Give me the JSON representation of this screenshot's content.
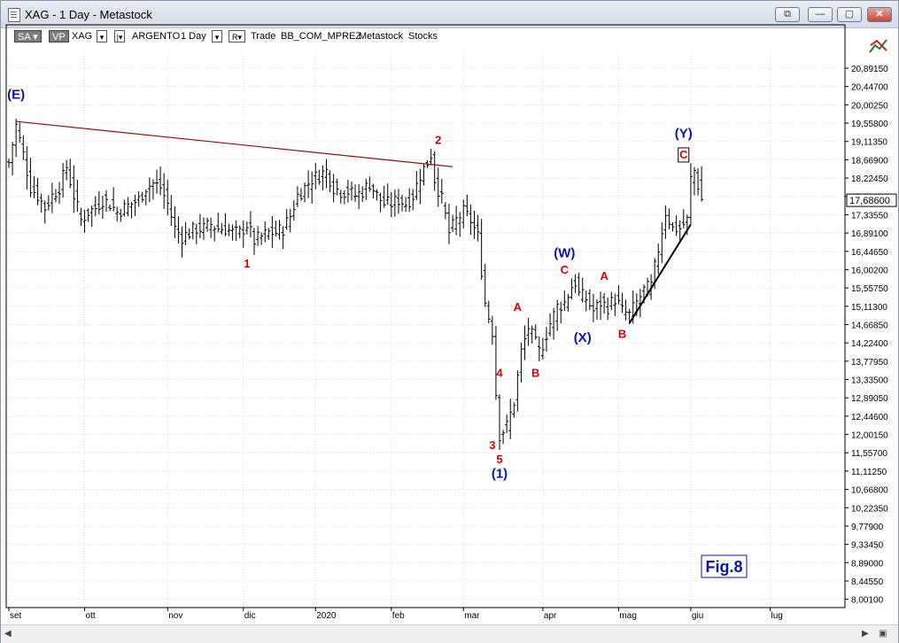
{
  "window": {
    "title": "XAG - 1 Day - Metastock",
    "buttons": {
      "restore_all": "⧉",
      "minimize": "—",
      "maximize": "▢",
      "close": "✕"
    }
  },
  "toolbar": {
    "sa": "SA",
    "vp": "VP",
    "symbol": "XAG",
    "name": "ARGENTO",
    "period": "1 Day",
    "r_label": "R",
    "items": [
      "Trade",
      "BB_COM_MPREZ",
      "Metastock",
      "Stocks"
    ]
  },
  "icons": {
    "chart_tool": "chart-tool-icon"
  },
  "colors": {
    "bars": "#000000",
    "wave_red": "#dd0000",
    "wave_blue": "#0a14b4",
    "trendline": "#9b1010",
    "grid": "#dcdcdc"
  },
  "chart_data": {
    "type": "ohlc",
    "title": "",
    "last_price": "17,68600",
    "ylim": [
      7.8,
      21.3
    ],
    "y_ticks": [
      "8,00100",
      "8,44550",
      "8,89000",
      "9,33450",
      "9,77900",
      "10,22350",
      "10,66800",
      "11,11250",
      "11,55700",
      "12,00150",
      "12,44600",
      "12,89050",
      "13,33500",
      "13,77950",
      "14,22400",
      "14,66850",
      "15,11300",
      "15,55750",
      "16,00200",
      "16,44650",
      "16,89100",
      "17,33550",
      "17,78000",
      "18,22450",
      "18,66900",
      "19,11350",
      "19,55800",
      "20,00250",
      "20,44700",
      "20,89150"
    ],
    "x_months": [
      {
        "label": "set",
        "day": 0
      },
      {
        "label": "ott",
        "day": 21
      },
      {
        "label": "nov",
        "day": 44
      },
      {
        "label": "dic",
        "day": 65
      },
      {
        "label": "2020",
        "day": 85
      },
      {
        "label": "feb",
        "day": 106
      },
      {
        "label": "mar",
        "day": 126
      },
      {
        "label": "apr",
        "day": 148
      },
      {
        "label": "mag",
        "day": 169
      },
      {
        "label": "giu",
        "day": 189
      },
      {
        "label": "lug",
        "day": 211
      }
    ],
    "x_range_days": [
      0,
      231
    ],
    "price_anchors": [
      {
        "d": 0,
        "v": 18.6
      },
      {
        "d": 2,
        "v": 19.5
      },
      {
        "d": 4,
        "v": 18.8
      },
      {
        "d": 6,
        "v": 18.0
      },
      {
        "d": 8,
        "v": 17.8
      },
      {
        "d": 10,
        "v": 17.5
      },
      {
        "d": 12,
        "v": 17.8
      },
      {
        "d": 14,
        "v": 18.0
      },
      {
        "d": 16,
        "v": 18.5
      },
      {
        "d": 18,
        "v": 17.8
      },
      {
        "d": 20,
        "v": 17.2
      },
      {
        "d": 22,
        "v": 17.4
      },
      {
        "d": 24,
        "v": 17.5
      },
      {
        "d": 26,
        "v": 17.7
      },
      {
        "d": 28,
        "v": 17.6
      },
      {
        "d": 30,
        "v": 17.4
      },
      {
        "d": 32,
        "v": 17.5
      },
      {
        "d": 34,
        "v": 17.6
      },
      {
        "d": 36,
        "v": 17.7
      },
      {
        "d": 38,
        "v": 18.0
      },
      {
        "d": 40,
        "v": 18.1
      },
      {
        "d": 42,
        "v": 18.0
      },
      {
        "d": 44,
        "v": 17.6
      },
      {
        "d": 46,
        "v": 17.0
      },
      {
        "d": 48,
        "v": 16.8
      },
      {
        "d": 50,
        "v": 16.9
      },
      {
        "d": 52,
        "v": 17.0
      },
      {
        "d": 54,
        "v": 17.0
      },
      {
        "d": 56,
        "v": 17.1
      },
      {
        "d": 58,
        "v": 17.0
      },
      {
        "d": 60,
        "v": 17.0
      },
      {
        "d": 62,
        "v": 16.9
      },
      {
        "d": 64,
        "v": 16.9
      },
      {
        "d": 66,
        "v": 17.1
      },
      {
        "d": 68,
        "v": 16.7
      },
      {
        "d": 70,
        "v": 16.8
      },
      {
        "d": 72,
        "v": 16.9
      },
      {
        "d": 74,
        "v": 16.9
      },
      {
        "d": 76,
        "v": 17.0
      },
      {
        "d": 78,
        "v": 17.3
      },
      {
        "d": 80,
        "v": 17.8
      },
      {
        "d": 82,
        "v": 18.0
      },
      {
        "d": 84,
        "v": 18.2
      },
      {
        "d": 86,
        "v": 18.3
      },
      {
        "d": 88,
        "v": 18.4
      },
      {
        "d": 90,
        "v": 18.0
      },
      {
        "d": 92,
        "v": 17.9
      },
      {
        "d": 94,
        "v": 17.9
      },
      {
        "d": 96,
        "v": 17.8
      },
      {
        "d": 98,
        "v": 17.9
      },
      {
        "d": 100,
        "v": 18.1
      },
      {
        "d": 102,
        "v": 17.8
      },
      {
        "d": 104,
        "v": 17.6
      },
      {
        "d": 106,
        "v": 17.6
      },
      {
        "d": 108,
        "v": 17.7
      },
      {
        "d": 110,
        "v": 17.6
      },
      {
        "d": 112,
        "v": 17.8
      },
      {
        "d": 114,
        "v": 18.3
      },
      {
        "d": 116,
        "v": 18.6
      },
      {
        "d": 117,
        "v": 18.8
      },
      {
        "d": 118,
        "v": 18.2
      },
      {
        "d": 120,
        "v": 17.7
      },
      {
        "d": 122,
        "v": 16.9
      },
      {
        "d": 124,
        "v": 17.2
      },
      {
        "d": 126,
        "v": 17.4
      },
      {
        "d": 128,
        "v": 17.2
      },
      {
        "d": 130,
        "v": 16.8
      },
      {
        "d": 132,
        "v": 15.2
      },
      {
        "d": 134,
        "v": 14.5
      },
      {
        "d": 135,
        "v": 13.0
      },
      {
        "d": 136,
        "v": 12.0
      },
      {
        "d": 138,
        "v": 12.2
      },
      {
        "d": 140,
        "v": 12.8
      },
      {
        "d": 142,
        "v": 14.0
      },
      {
        "d": 144,
        "v": 14.6
      },
      {
        "d": 146,
        "v": 14.2
      },
      {
        "d": 147,
        "v": 14.0
      },
      {
        "d": 148,
        "v": 14.2
      },
      {
        "d": 150,
        "v": 14.7
      },
      {
        "d": 152,
        "v": 15.1
      },
      {
        "d": 154,
        "v": 15.2
      },
      {
        "d": 156,
        "v": 15.6
      },
      {
        "d": 157,
        "v": 15.7
      },
      {
        "d": 158,
        "v": 15.4
      },
      {
        "d": 160,
        "v": 15.3
      },
      {
        "d": 162,
        "v": 15.0
      },
      {
        "d": 164,
        "v": 15.2
      },
      {
        "d": 166,
        "v": 15.1
      },
      {
        "d": 168,
        "v": 15.3
      },
      {
        "d": 170,
        "v": 15.0
      },
      {
        "d": 172,
        "v": 14.9
      },
      {
        "d": 174,
        "v": 15.2
      },
      {
        "d": 176,
        "v": 15.5
      },
      {
        "d": 178,
        "v": 15.6
      },
      {
        "d": 180,
        "v": 16.5
      },
      {
        "d": 182,
        "v": 17.4
      },
      {
        "d": 184,
        "v": 17.0
      },
      {
        "d": 186,
        "v": 17.0
      },
      {
        "d": 188,
        "v": 17.2
      },
      {
        "d": 189,
        "v": 18.2
      },
      {
        "d": 190,
        "v": 18.4
      },
      {
        "d": 192,
        "v": 17.7
      }
    ],
    "trendline_upper": [
      {
        "d": 2,
        "v": 19.6
      },
      {
        "d": 123,
        "v": 18.5
      }
    ],
    "trendline_lower": [
      {
        "d": 172,
        "v": 14.7
      },
      {
        "d": 189,
        "v": 17.1
      }
    ],
    "wave_labels": [
      {
        "text": "(E)",
        "d": 2,
        "v": 20.15,
        "color": "blue",
        "size": "big"
      },
      {
        "text": "2",
        "d": 119,
        "v": 19.05,
        "color": "red"
      },
      {
        "text": "1",
        "d": 66,
        "v": 16.05,
        "color": "red"
      },
      {
        "text": "(W)",
        "d": 154,
        "v": 16.3,
        "color": "blue",
        "size": "big"
      },
      {
        "text": "C",
        "d": 154,
        "v": 15.9,
        "color": "red"
      },
      {
        "text": "A",
        "d": 165,
        "v": 15.75,
        "color": "red"
      },
      {
        "text": "A",
        "d": 141,
        "v": 15.0,
        "color": "red"
      },
      {
        "text": "(X)",
        "d": 159,
        "v": 14.25,
        "color": "blue",
        "size": "big"
      },
      {
        "text": "B",
        "d": 170,
        "v": 14.35,
        "color": "red"
      },
      {
        "text": "B",
        "d": 146,
        "v": 13.4,
        "color": "red"
      },
      {
        "text": "4",
        "d": 136,
        "v": 13.4,
        "color": "red"
      },
      {
        "text": "3",
        "d": 134,
        "v": 11.65,
        "color": "red"
      },
      {
        "text": "5",
        "d": 136,
        "v": 11.3,
        "color": "red"
      },
      {
        "text": "(1)",
        "d": 136,
        "v": 10.95,
        "color": "blue",
        "size": "big"
      },
      {
        "text": "(Y)",
        "d": 187,
        "v": 19.2,
        "color": "blue",
        "size": "big"
      },
      {
        "text": "C",
        "d": 187,
        "v": 18.7,
        "color": "red",
        "boxed": true
      }
    ],
    "annotation": "Fig.8"
  }
}
